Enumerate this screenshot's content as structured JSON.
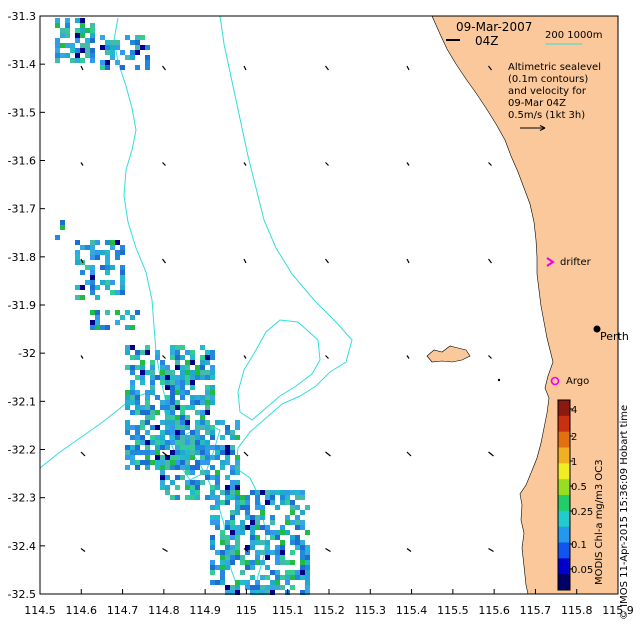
{
  "map": {
    "date": "09-Mar-2007",
    "time": "04Z",
    "scale_bar_label": "200  1000m",
    "legend": {
      "line1": "Altimetric sealevel",
      "line2": "(0.1m contours)",
      "line3": "and velocity for",
      "line4": "09-Mar 04Z",
      "line5": "0.5m/s (1kt 3h)"
    },
    "drifter_label": "drifter",
    "argo_label": "Argo",
    "city_label": "Perth",
    "colorbar_title": "MODIS Chl-a mg/m3 OC3",
    "credit": "© IMOS 11-Apr-2015 15:36:09 Hobart time",
    "colorbar_ticks": [
      "4",
      "2",
      "1",
      "0.5",
      "0.25",
      "0.1",
      "0.05"
    ],
    "x_ticks": [
      "114.5",
      "114.6",
      "114.7",
      "114.8",
      "114.9",
      "115",
      "115.1",
      "115.2",
      "115.3",
      "115.4",
      "115.5",
      "115.6",
      "115.7",
      "115.8",
      "115.9"
    ],
    "y_ticks": [
      "-31.3",
      "-31.4",
      "-31.5",
      "-31.6",
      "-31.7",
      "-31.8",
      "-31.9",
      "-32",
      "-32.1",
      "-32.2",
      "-32.3",
      "-32.4",
      "-32.5"
    ],
    "colors": {
      "land": "#fac89a",
      "isobath": "#33dddd",
      "drifter": "#ee00ee",
      "argo": "#ee00ee"
    }
  }
}
